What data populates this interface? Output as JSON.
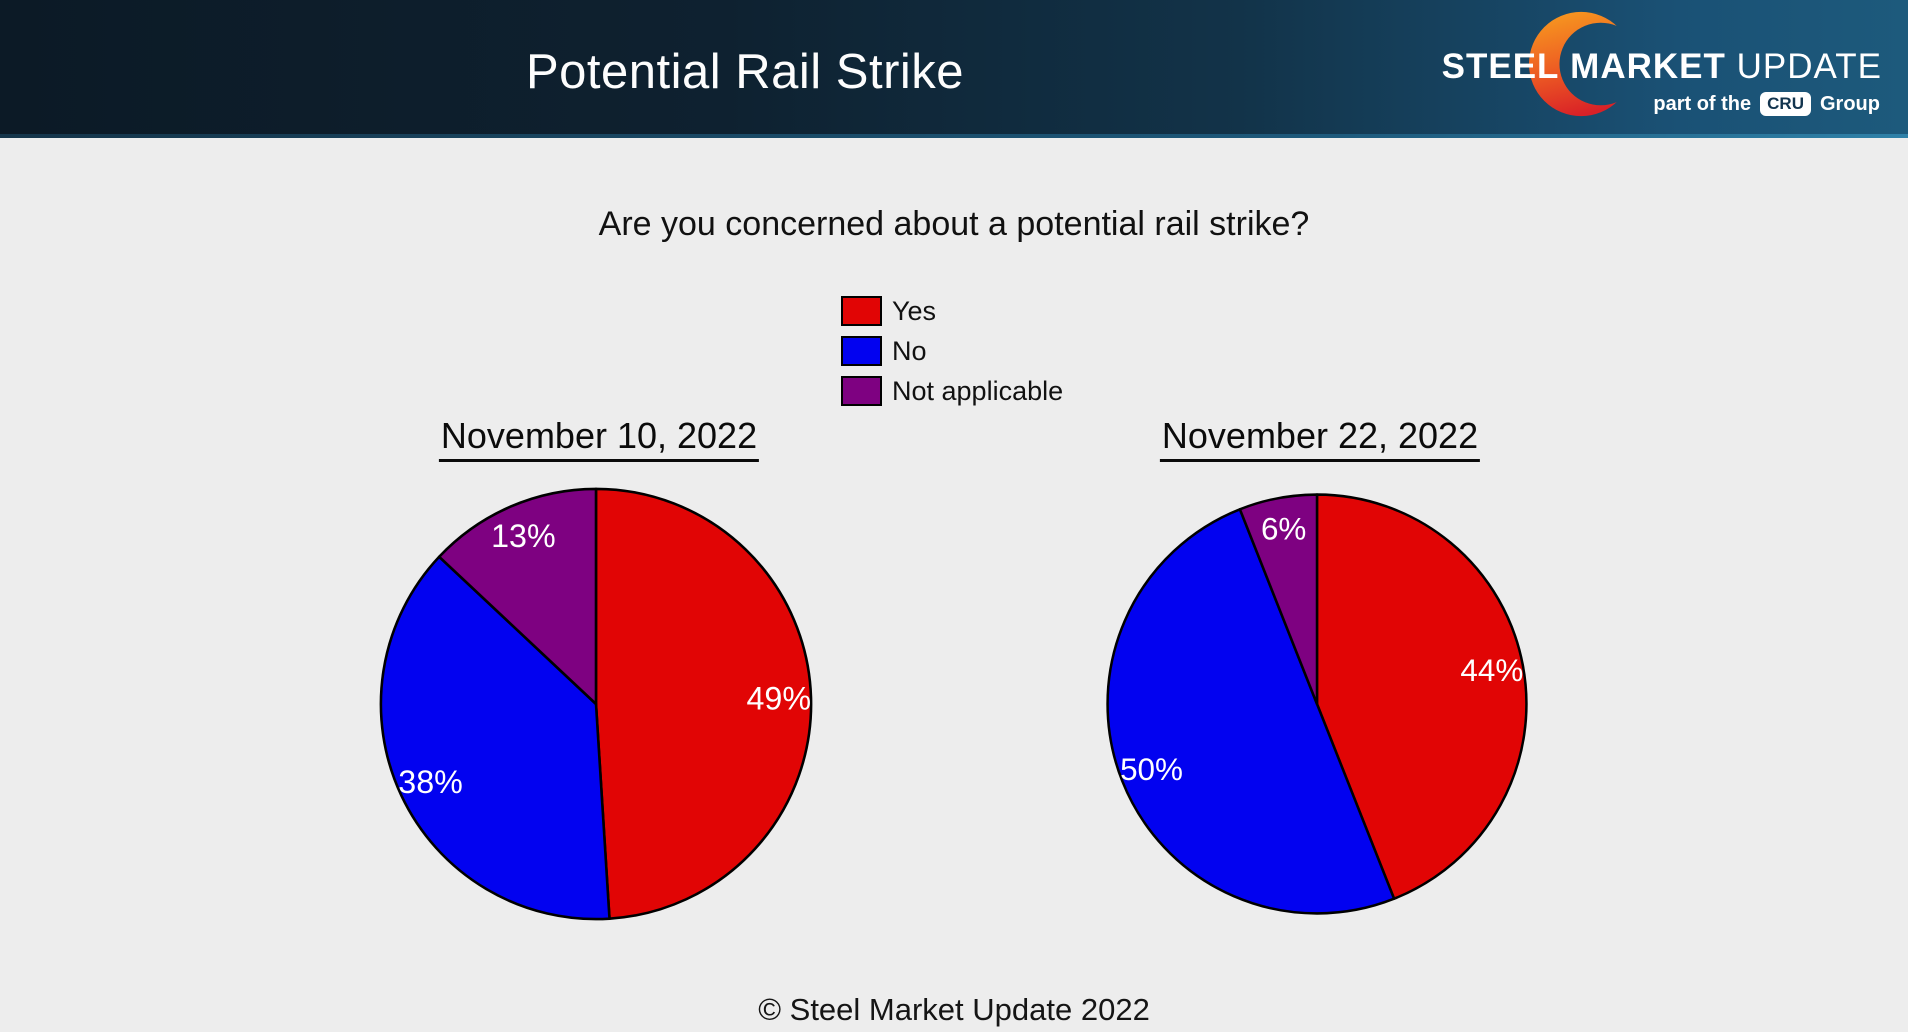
{
  "header": {
    "title": "Potential Rail Strike",
    "logo": {
      "steel": "STEEL",
      "market": "MARKET",
      "update": "UPDATE",
      "tagline_prefix": "part of the",
      "cru": "CRU",
      "tagline_suffix": "Group"
    }
  },
  "question": "Are you concerned about a potential rail strike?",
  "legend": [
    {
      "label": "Yes",
      "color": "#e10505"
    },
    {
      "label": "No",
      "color": "#0202f0"
    },
    {
      "label": "Not applicable",
      "color": "#7e0181"
    }
  ],
  "chart_data": [
    {
      "type": "pie",
      "title": "November 10, 2022",
      "labels": [
        "Yes",
        "No",
        "Not applicable"
      ],
      "values": [
        49,
        38,
        13
      ],
      "value_labels": [
        "49%",
        "38%",
        "13%"
      ],
      "colors": [
        "#e10505",
        "#0202f0",
        "#7e0181"
      ],
      "start_angle": "top",
      "direction": "clockwise",
      "label_radius": 0.85,
      "legend_position": "above-center",
      "slice_border_color": "#000000"
    },
    {
      "type": "pie",
      "title": "November 22, 2022",
      "labels": [
        "Yes",
        "No",
        "Not applicable"
      ],
      "values": [
        44,
        50,
        6
      ],
      "value_labels": [
        "44%",
        "50%",
        "6%"
      ],
      "colors": [
        "#e10505",
        "#0202f0",
        "#7e0181"
      ],
      "start_angle": "top",
      "direction": "clockwise",
      "label_radius": 0.85,
      "legend_position": "above-center",
      "slice_border_color": "#000000"
    }
  ],
  "footer": "© Steel Market Update 2022"
}
